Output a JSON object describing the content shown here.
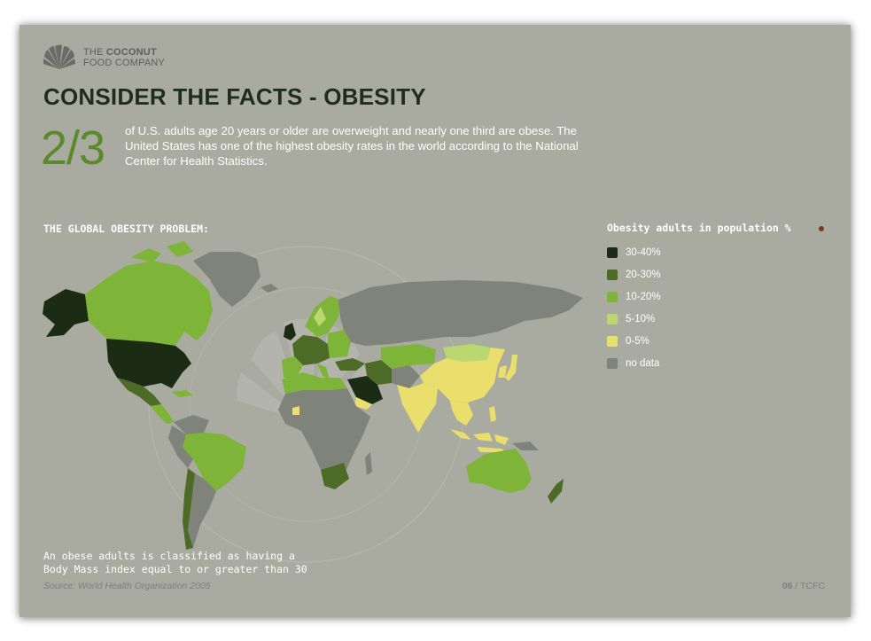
{
  "brand": {
    "line1_prefix": "THE ",
    "line1_bold": "COCONUT",
    "line2": "FOOD COMPANY",
    "logo_icon": "coconut-palm-icon"
  },
  "title": "CONSIDER THE FACTS - OBESITY",
  "stat": {
    "fraction": "2/3",
    "text": "of U.S. adults age 20 years or older are overweight  and nearly one third are obese. The United States has one of the highest obesity rates in the world according to the National Center for Health Statistics."
  },
  "map_section": {
    "heading": "THE GLOBAL OBESITY PROBLEM:",
    "watermark_icon": "coconut-stamp-watermark"
  },
  "legend": {
    "title": "Obesity adults in population %",
    "items": [
      {
        "label": "30-40%",
        "color": "#1c2c14"
      },
      {
        "label": "20-30%",
        "color": "#4c6b27"
      },
      {
        "label": "10-20%",
        "color": "#7eb438"
      },
      {
        "label": "5-10%",
        "color": "#b9d870"
      },
      {
        "label": "0-5%",
        "color": "#eadf6c"
      },
      {
        "label": "no data",
        "color": "#7f8379"
      }
    ],
    "marker_color": "#7a3a22"
  },
  "note": "An obese adults is classified as having a\nBody Mass index equal to or greater than 30",
  "source": "Source:  World Health Organization 2005",
  "pager": {
    "page": "06",
    "separator": " / ",
    "section": "TCFC"
  }
}
